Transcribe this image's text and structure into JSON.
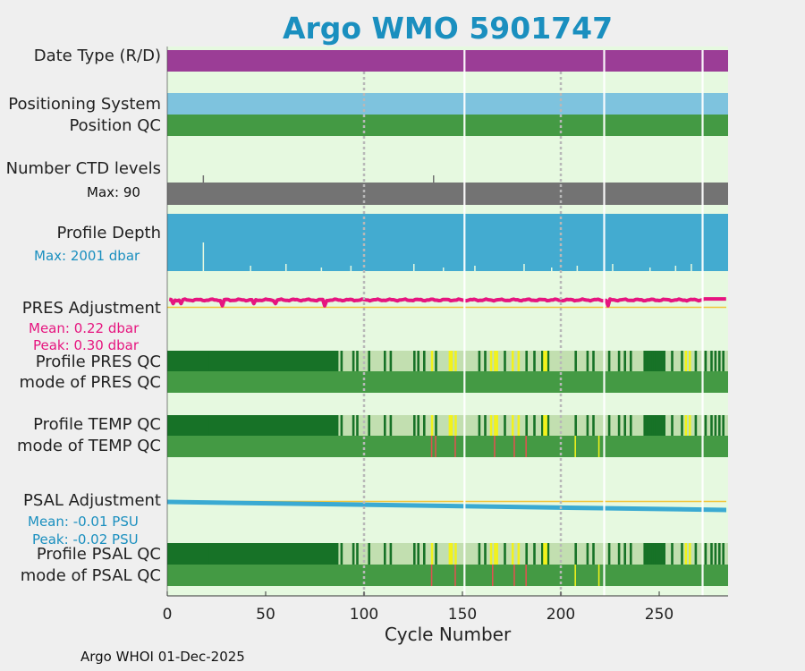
{
  "title": "Argo WMO 5901747",
  "footer": "Argo WHOI 01-Dec-2025",
  "colors": {
    "background": "#e6f9e0",
    "date_type": "#9b3d96",
    "positioning": "#7ec3de",
    "qc_good": "#449a44",
    "qc_dark": "#177227",
    "qc_light": "#c2dfb0",
    "qc_yellow": "#f2f21c",
    "qc_red": "#e0524f",
    "ctd": "#737373",
    "depth": "#43abd0",
    "pres": "#e6157f",
    "psal": "#3aaad2",
    "zero_line": "#f2c53a",
    "title": "#1a8fbf"
  },
  "labels": {
    "date_type": "Date Type (R/D)",
    "positioning": "Positioning System",
    "position_qc": "Position QC",
    "ctd": "Number CTD levels",
    "ctd_max": "Max: 90",
    "depth": "Profile Depth",
    "depth_max": "Max: 2001 dbar",
    "pres_adj": "PRES Adjustment",
    "pres_mean": "Mean: 0.22 dbar",
    "pres_peak": "Peak: 0.30 dbar",
    "pres_qc": "Profile PRES QC",
    "pres_mode": "mode of PRES QC",
    "temp_qc": "Profile TEMP QC",
    "temp_mode": "mode of TEMP QC",
    "psal_adj": "PSAL Adjustment",
    "psal_mean": "Mean: -0.01 PSU",
    "psal_peak": "Peak: -0.02 PSU",
    "psal_qc": "Profile PSAL QC",
    "psal_mode": "mode of PSAL QC"
  },
  "chart_data": {
    "type": "timeline",
    "title": "Argo WMO 5901747",
    "xlabel": "Cycle Number",
    "xlim": [
      0,
      285
    ],
    "xticks": [
      0,
      50,
      100,
      150,
      200,
      250
    ],
    "gridlines_dotted": [
      100,
      200
    ],
    "missing_cycles": [
      151,
      222,
      272
    ],
    "n_cycles": 285,
    "ctd_max": 90,
    "depth_max_dbar": 2001,
    "pres_adjustment": {
      "mean": 0.22,
      "peak": 0.3,
      "unit": "dbar"
    },
    "psal_adjustment": {
      "mean": -0.01,
      "peak": -0.02,
      "unit": "PSU",
      "start": 0.0,
      "end": -0.02
    },
    "profile_qc_light_ranges": [
      [
        87,
        284
      ]
    ],
    "profile_qc_dark_cycles": [
      20,
      88,
      94,
      96,
      102,
      110,
      113,
      125,
      127,
      130,
      136,
      158,
      161,
      171,
      182,
      186,
      190,
      193,
      207,
      213,
      216,
      224,
      229,
      232,
      235,
      242,
      243,
      244,
      245,
      246,
      247,
      248,
      249,
      250,
      251,
      252,
      256,
      261,
      268,
      273,
      276,
      278,
      280,
      282
    ],
    "profile_qc_yellow_cycles": [
      134,
      143,
      144,
      146,
      164,
      166,
      167,
      175,
      178,
      191,
      192,
      263,
      265
    ],
    "temp_mode_red_cycles": [
      134,
      136,
      146,
      166,
      176,
      182
    ],
    "temp_mode_yellow_cycles": [
      207,
      219
    ],
    "psal_mode_red_cycles": [
      134,
      146,
      165,
      176,
      182
    ],
    "psal_mode_yellow_cycles": [
      207,
      219
    ],
    "ctd_spike_cycles": [
      18,
      135
    ],
    "depth_shallow_cycles": [
      18,
      42,
      60,
      78,
      93,
      125,
      140,
      156,
      181,
      195,
      208,
      226,
      245,
      258,
      266
    ]
  }
}
